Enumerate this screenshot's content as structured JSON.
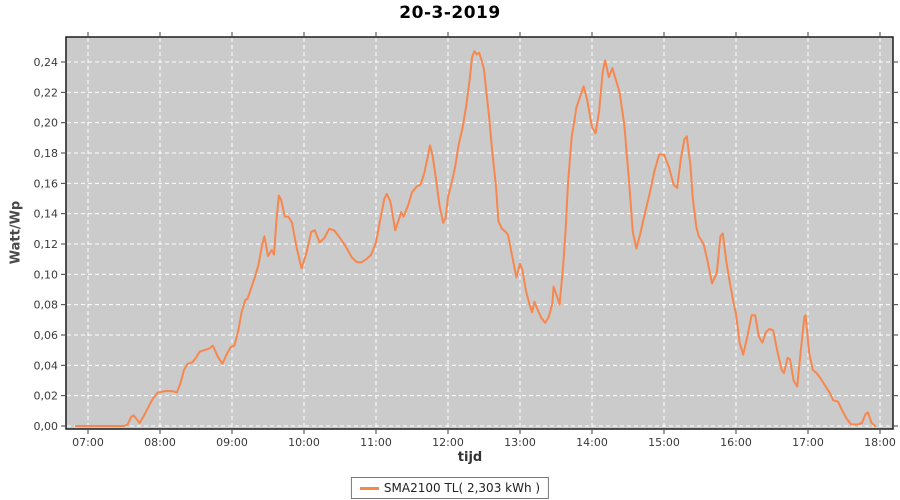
{
  "title": "20-3-2019",
  "axes": {
    "y_label": "Watt/Wp",
    "x_label": "tijd"
  },
  "legend": {
    "label": "SMA2100 TL( 2,303 kWh )"
  },
  "colors": {
    "line": "#f6874e",
    "plot_bg": "#cbcbcb",
    "grid": "#ffffff",
    "axis_border": "#1c1c1c",
    "tick_mark": "#3c3c3c",
    "tick_text": "#3a3a3a"
  },
  "chart_data": {
    "type": "line",
    "title": "20-3-2019",
    "xlabel": "tijd",
    "ylabel": "Watt/Wp",
    "legend_position": "bottom-center",
    "grid": true,
    "x_ticks": [
      "07:00",
      "08:00",
      "09:00",
      "10:00",
      "11:00",
      "12:00",
      "13:00",
      "14:00",
      "15:00",
      "16:00",
      "17:00",
      "18:00"
    ],
    "y_ticks": [
      "0,00",
      "0,02",
      "0,04",
      "0,06",
      "0,08",
      "0,10",
      "0,12",
      "0,14",
      "0,16",
      "0,18",
      "0,20",
      "0,22",
      "0,24"
    ],
    "y_tick_step": 0.02,
    "ylim": [
      0,
      0.256
    ],
    "xlim": [
      "06:50",
      "18:11"
    ],
    "series": [
      {
        "name": "SMA2100 TL( 2,303 kWh )",
        "points": [
          [
            "06:50",
            0.0
          ],
          [
            "07:00",
            0.0
          ],
          [
            "07:15",
            0.0
          ],
          [
            "07:30",
            0.0
          ],
          [
            "07:33",
            0.001
          ],
          [
            "07:36",
            0.006
          ],
          [
            "07:38",
            0.007
          ],
          [
            "07:41",
            0.004
          ],
          [
            "07:43",
            0.002
          ],
          [
            "07:46",
            0.006
          ],
          [
            "07:50",
            0.012
          ],
          [
            "07:54",
            0.018
          ],
          [
            "07:58",
            0.022
          ],
          [
            "08:04",
            0.023
          ],
          [
            "08:10",
            0.023
          ],
          [
            "08:14",
            0.022
          ],
          [
            "08:17",
            0.028
          ],
          [
            "08:20",
            0.037
          ],
          [
            "08:23",
            0.041
          ],
          [
            "08:27",
            0.042
          ],
          [
            "08:30",
            0.045
          ],
          [
            "08:33",
            0.049
          ],
          [
            "08:37",
            0.05
          ],
          [
            "08:41",
            0.051
          ],
          [
            "08:44",
            0.053
          ],
          [
            "08:48",
            0.046
          ],
          [
            "08:52",
            0.041
          ],
          [
            "08:56",
            0.048
          ],
          [
            "08:59",
            0.052
          ],
          [
            "09:02",
            0.053
          ],
          [
            "09:05",
            0.062
          ],
          [
            "09:08",
            0.075
          ],
          [
            "09:11",
            0.083
          ],
          [
            "09:13",
            0.084
          ],
          [
            "09:16",
            0.091
          ],
          [
            "09:19",
            0.098
          ],
          [
            "09:22",
            0.106
          ],
          [
            "09:25",
            0.119
          ],
          [
            "09:27",
            0.125
          ],
          [
            "09:30",
            0.112
          ],
          [
            "09:33",
            0.116
          ],
          [
            "09:35",
            0.113
          ],
          [
            "09:37",
            0.135
          ],
          [
            "09:39",
            0.152
          ],
          [
            "09:41",
            0.149
          ],
          [
            "09:44",
            0.138
          ],
          [
            "09:47",
            0.138
          ],
          [
            "09:50",
            0.134
          ],
          [
            "09:54",
            0.117
          ],
          [
            "09:58",
            0.104
          ],
          [
            "10:02",
            0.114
          ],
          [
            "10:06",
            0.128
          ],
          [
            "10:09",
            0.129
          ],
          [
            "10:13",
            0.121
          ],
          [
            "10:17",
            0.124
          ],
          [
            "10:21",
            0.13
          ],
          [
            "10:25",
            0.129
          ],
          [
            "10:30",
            0.124
          ],
          [
            "10:35",
            0.118
          ],
          [
            "10:40",
            0.111
          ],
          [
            "10:44",
            0.108
          ],
          [
            "10:48",
            0.108
          ],
          [
            "10:52",
            0.11
          ],
          [
            "10:56",
            0.113
          ],
          [
            "11:00",
            0.121
          ],
          [
            "11:04",
            0.138
          ],
          [
            "11:07",
            0.15
          ],
          [
            "11:09",
            0.153
          ],
          [
            "11:12",
            0.148
          ],
          [
            "11:16",
            0.129
          ],
          [
            "11:19",
            0.136
          ],
          [
            "11:21",
            0.141
          ],
          [
            "11:23",
            0.138
          ],
          [
            "11:27",
            0.146
          ],
          [
            "11:30",
            0.154
          ],
          [
            "11:34",
            0.158
          ],
          [
            "11:37",
            0.159
          ],
          [
            "11:40",
            0.166
          ],
          [
            "11:43",
            0.177
          ],
          [
            "11:45",
            0.185
          ],
          [
            "11:47",
            0.179
          ],
          [
            "11:50",
            0.163
          ],
          [
            "11:53",
            0.145
          ],
          [
            "11:56",
            0.134
          ],
          [
            "11:58",
            0.137
          ],
          [
            "12:00",
            0.151
          ],
          [
            "12:03",
            0.16
          ],
          [
            "12:06",
            0.171
          ],
          [
            "12:09",
            0.186
          ],
          [
            "12:12",
            0.196
          ],
          [
            "12:15",
            0.21
          ],
          [
            "12:18",
            0.228
          ],
          [
            "12:20",
            0.243
          ],
          [
            "12:22",
            0.247
          ],
          [
            "12:24",
            0.245
          ],
          [
            "12:26",
            0.246
          ],
          [
            "12:28",
            0.241
          ],
          [
            "12:30",
            0.235
          ],
          [
            "12:32",
            0.22
          ],
          [
            "12:34",
            0.206
          ],
          [
            "12:37",
            0.18
          ],
          [
            "12:40",
            0.158
          ],
          [
            "12:42",
            0.135
          ],
          [
            "12:45",
            0.13
          ],
          [
            "12:48",
            0.128
          ],
          [
            "12:50",
            0.126
          ],
          [
            "12:54",
            0.11
          ],
          [
            "12:57",
            0.098
          ],
          [
            "13:00",
            0.107
          ],
          [
            "13:02",
            0.103
          ],
          [
            "13:05",
            0.089
          ],
          [
            "13:08",
            0.08
          ],
          [
            "13:10",
            0.075
          ],
          [
            "13:12",
            0.082
          ],
          [
            "13:15",
            0.076
          ],
          [
            "13:18",
            0.071
          ],
          [
            "13:21",
            0.068
          ],
          [
            "13:24",
            0.072
          ],
          [
            "13:27",
            0.081
          ],
          [
            "13:28",
            0.092
          ],
          [
            "13:31",
            0.085
          ],
          [
            "13:33",
            0.08
          ],
          [
            "13:36",
            0.106
          ],
          [
            "13:38",
            0.129
          ],
          [
            "13:40",
            0.16
          ],
          [
            "13:43",
            0.19
          ],
          [
            "13:47",
            0.21
          ],
          [
            "13:50",
            0.217
          ],
          [
            "13:53",
            0.224
          ],
          [
            "13:56",
            0.215
          ],
          [
            "14:00",
            0.197
          ],
          [
            "14:03",
            0.193
          ],
          [
            "14:06",
            0.208
          ],
          [
            "14:09",
            0.234
          ],
          [
            "14:11",
            0.241
          ],
          [
            "14:14",
            0.23
          ],
          [
            "14:17",
            0.236
          ],
          [
            "14:20",
            0.228
          ],
          [
            "14:23",
            0.22
          ],
          [
            "14:27",
            0.198
          ],
          [
            "14:31",
            0.16
          ],
          [
            "14:34",
            0.128
          ],
          [
            "14:37",
            0.117
          ],
          [
            "14:40",
            0.126
          ],
          [
            "14:44",
            0.14
          ],
          [
            "14:48",
            0.153
          ],
          [
            "14:52",
            0.168
          ],
          [
            "14:56",
            0.179
          ],
          [
            "15:00",
            0.179
          ],
          [
            "15:04",
            0.171
          ],
          [
            "15:08",
            0.159
          ],
          [
            "15:11",
            0.157
          ],
          [
            "15:14",
            0.176
          ],
          [
            "15:17",
            0.189
          ],
          [
            "15:19",
            0.191
          ],
          [
            "15:22",
            0.172
          ],
          [
            "15:24",
            0.15
          ],
          [
            "15:27",
            0.131
          ],
          [
            "15:29",
            0.125
          ],
          [
            "15:33",
            0.12
          ],
          [
            "15:36",
            0.11
          ],
          [
            "15:40",
            0.094
          ],
          [
            "15:44",
            0.101
          ],
          [
            "15:47",
            0.125
          ],
          [
            "15:49",
            0.127
          ],
          [
            "15:52",
            0.108
          ],
          [
            "15:55",
            0.094
          ],
          [
            "15:58",
            0.081
          ],
          [
            "16:00",
            0.074
          ],
          [
            "16:03",
            0.055
          ],
          [
            "16:06",
            0.047
          ],
          [
            "16:10",
            0.061
          ],
          [
            "16:13",
            0.073
          ],
          [
            "16:16",
            0.073
          ],
          [
            "16:19",
            0.059
          ],
          [
            "16:22",
            0.055
          ],
          [
            "16:25",
            0.062
          ],
          [
            "16:28",
            0.064
          ],
          [
            "16:31",
            0.063
          ],
          [
            "16:34",
            0.051
          ],
          [
            "16:38",
            0.037
          ],
          [
            "16:40",
            0.035
          ],
          [
            "16:43",
            0.045
          ],
          [
            "16:45",
            0.044
          ],
          [
            "16:48",
            0.03
          ],
          [
            "16:51",
            0.026
          ],
          [
            "16:54",
            0.05
          ],
          [
            "16:57",
            0.072
          ],
          [
            "16:58",
            0.073
          ],
          [
            "17:01",
            0.048
          ],
          [
            "17:04",
            0.037
          ],
          [
            "17:07",
            0.035
          ],
          [
            "17:10",
            0.032
          ],
          [
            "17:14",
            0.027
          ],
          [
            "17:18",
            0.022
          ],
          [
            "17:21",
            0.017
          ],
          [
            "17:25",
            0.016
          ],
          [
            "17:28",
            0.011
          ],
          [
            "17:32",
            0.005
          ],
          [
            "17:36",
            0.001
          ],
          [
            "17:41",
            0.001
          ],
          [
            "17:45",
            0.002
          ],
          [
            "17:48",
            0.008
          ],
          [
            "17:50",
            0.009
          ],
          [
            "17:53",
            0.002
          ],
          [
            "17:56",
            0.0
          ]
        ]
      }
    ]
  }
}
